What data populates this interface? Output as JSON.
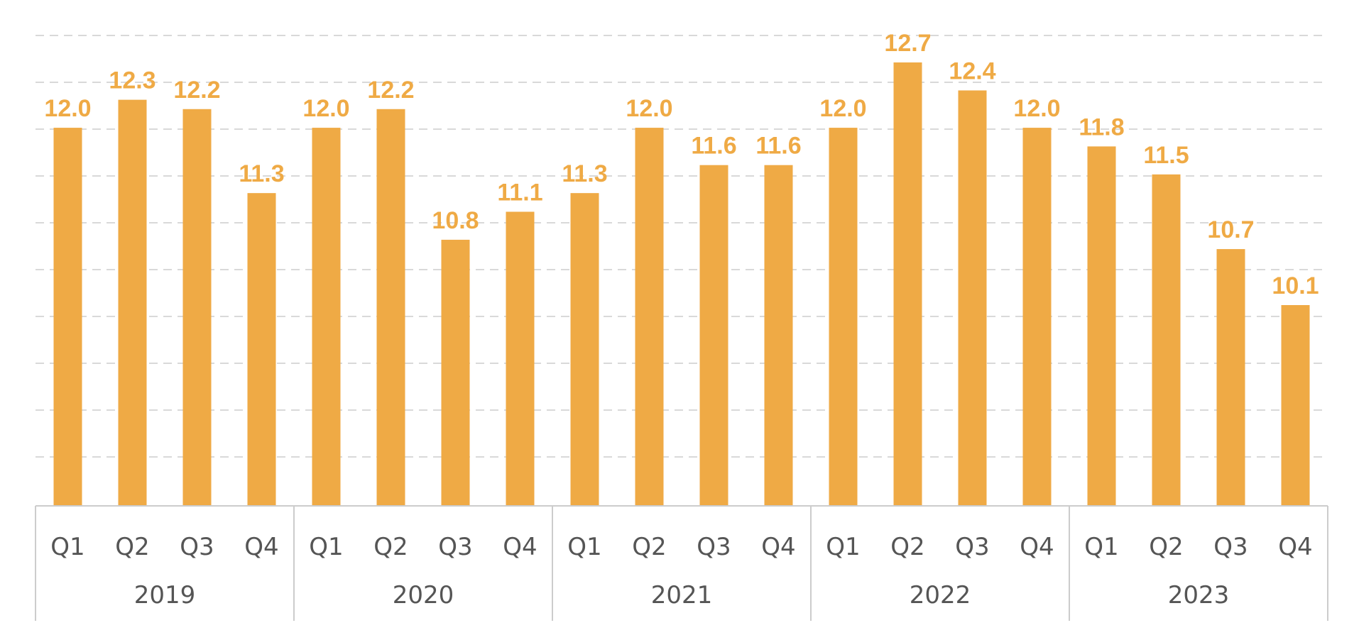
{
  "chart_data": {
    "type": "bar",
    "title": "",
    "xlabel": "",
    "ylabel": "",
    "grid": true,
    "legend": "none",
    "colors": {
      "bar": "#EFAA45",
      "value_label": "#EFAA45",
      "grid": "#d9d9d9",
      "axis": "#cccccc",
      "tick_text": "#555555"
    },
    "groups": [
      {
        "label": "2019",
        "categories": [
          "Q1",
          "Q2",
          "Q3",
          "Q4"
        ],
        "values": [
          12.0,
          12.3,
          12.2,
          11.3
        ],
        "value_labels": [
          "12.0",
          "12.3",
          "12.2",
          "11.3"
        ]
      },
      {
        "label": "2020",
        "categories": [
          "Q1",
          "Q2",
          "Q3",
          "Q4"
        ],
        "values": [
          12.0,
          12.2,
          10.8,
          11.1
        ],
        "value_labels": [
          "12.0",
          "12.2",
          "10.8",
          "11.1"
        ]
      },
      {
        "label": "2021",
        "categories": [
          "Q1",
          "Q2",
          "Q3",
          "Q4"
        ],
        "values": [
          11.3,
          12.0,
          11.6,
          11.6
        ],
        "value_labels": [
          "11.3",
          "12.0",
          "11.6",
          "11.6"
        ]
      },
      {
        "label": "2022",
        "categories": [
          "Q1",
          "Q2",
          "Q3",
          "Q4"
        ],
        "values": [
          12.0,
          12.7,
          12.4,
          12.0
        ],
        "value_labels": [
          "12.0",
          "12.7",
          "12.4",
          "12.0"
        ]
      },
      {
        "label": "2023",
        "categories": [
          "Q1",
          "Q2",
          "Q3",
          "Q4"
        ],
        "values": [
          11.8,
          11.5,
          10.7,
          10.1
        ],
        "value_labels": [
          "11.8",
          "11.5",
          "10.7",
          "10.1"
        ]
      }
    ]
  }
}
